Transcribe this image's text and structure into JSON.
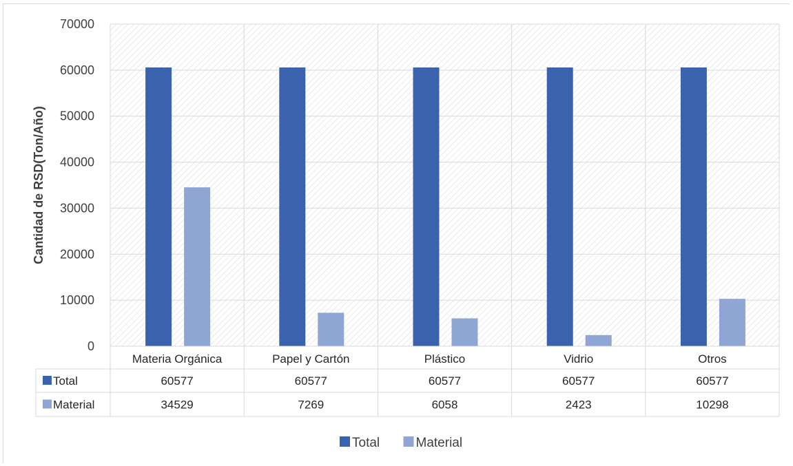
{
  "colors": {
    "total": "#3b63ad",
    "material": "#8fa5d4",
    "grid": "#d9d9d9"
  },
  "chart_data": {
    "type": "bar",
    "ylabel": "Cantidad de RSD(Ton/Año)",
    "ylim": [
      0,
      70000
    ],
    "yticks": [
      0,
      10000,
      20000,
      30000,
      40000,
      50000,
      60000,
      70000
    ],
    "categories": [
      "Materia Orgánica",
      "Papel y Cartón",
      "Plástico",
      "Vidrio",
      "Otros"
    ],
    "series": [
      {
        "name": "Total",
        "values": [
          60577,
          60577,
          60577,
          60577,
          60577
        ]
      },
      {
        "name": "Material",
        "values": [
          34529,
          7269,
          6058,
          2423,
          10298
        ]
      }
    ],
    "legend": "bottom",
    "data_table": true,
    "grid": true
  }
}
